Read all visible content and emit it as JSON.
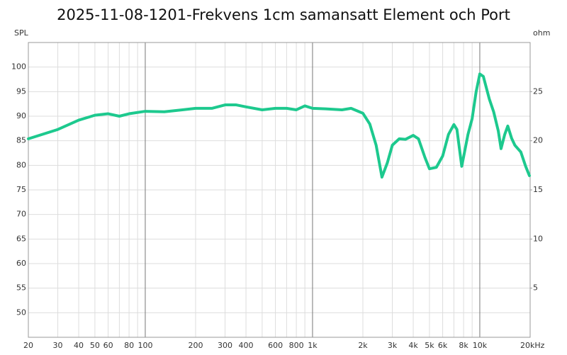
{
  "chart_data": {
    "type": "line",
    "title": "2025-11-08-1201-Frekvens 1cm samansatt Element och Port",
    "y_label": "SPL",
    "y2_label": "ohm",
    "log_x": true,
    "grid": true,
    "xlim": [
      20,
      20000
    ],
    "xticks": [
      20,
      30,
      40,
      50,
      60,
      80,
      100,
      200,
      300,
      400,
      600,
      800,
      {
        "value": 1000,
        "label": "1k"
      },
      {
        "value": 2000,
        "label": "2k"
      },
      {
        "value": 3000,
        "label": "3k"
      },
      {
        "value": 4000,
        "label": "4k"
      },
      {
        "value": 5000,
        "label": "5k"
      },
      {
        "value": 6000,
        "label": "6k"
      },
      {
        "value": 8000,
        "label": "8k"
      },
      {
        "value": 10000,
        "label": "10k"
      },
      {
        "value": 20000,
        "label": "20kHz"
      }
    ],
    "minor_xticks": [
      70,
      90,
      500,
      700,
      900,
      7000,
      9000
    ],
    "ylim": [
      45,
      105
    ],
    "yticks": [
      50,
      55,
      60,
      65,
      70,
      75,
      80,
      85,
      90,
      95,
      100
    ],
    "y2lim": [
      0,
      30
    ],
    "y2ticks": [
      5,
      10,
      15,
      20,
      25
    ],
    "x": [
      20,
      30,
      40,
      50,
      60,
      70,
      80,
      100,
      130,
      200,
      250,
      300,
      350,
      400,
      500,
      600,
      700,
      800,
      900,
      1000,
      1200,
      1500,
      1700,
      2000,
      2200,
      2400,
      2600,
      2800,
      3000,
      3300,
      3600,
      4000,
      4300,
      4700,
      5000,
      5500,
      6000,
      6500,
      7000,
      7300,
      7800,
      8500,
      9000,
      9500,
      10000,
      10500,
      11400,
      12100,
      12900,
      13400,
      14100,
      14700,
      15500,
      16200,
      17600,
      18800,
      19800
    ],
    "series": [
      {
        "name": "SPL",
        "color": "#1dc98e",
        "values": [
          85.4,
          87.3,
          89.2,
          90.2,
          90.5,
          90.0,
          90.5,
          91.0,
          90.9,
          91.6,
          91.6,
          92.3,
          92.3,
          91.9,
          91.3,
          91.6,
          91.6,
          91.3,
          92.1,
          91.6,
          91.5,
          91.3,
          91.6,
          90.6,
          88.4,
          84.1,
          77.6,
          80.5,
          84.1,
          85.4,
          85.3,
          86.1,
          85.4,
          81.6,
          79.3,
          79.6,
          81.9,
          86.3,
          88.3,
          87.3,
          79.8,
          86.3,
          89.5,
          94.9,
          98.6,
          98.1,
          93.5,
          90.9,
          87.0,
          83.4,
          86.3,
          88.0,
          85.5,
          84.1,
          82.7,
          79.8,
          77.9
        ]
      }
    ]
  }
}
